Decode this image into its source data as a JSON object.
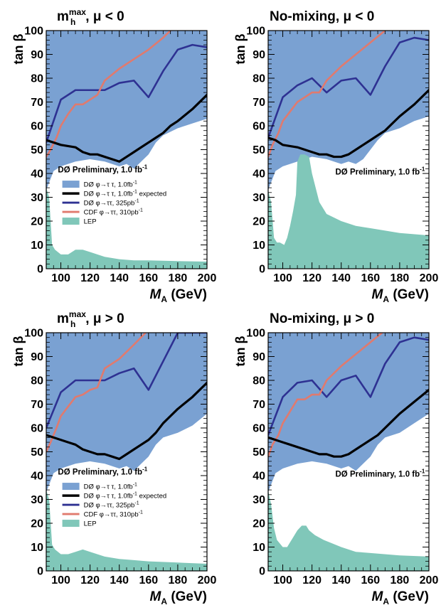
{
  "figure": {
    "ylabel": "tan β",
    "xlabel_main": "M",
    "xlabel_sub": "A",
    "xlabel_unit": " (GeV)",
    "colors": {
      "d0_observed_fill": "#7aa1d2",
      "d0_expected": "#000000",
      "d0_325pb": "#2e3192",
      "cdf": "#e07a6e",
      "lep": "#80c7b9"
    }
  },
  "chart_data": [
    {
      "type": "area",
      "title": "m_h^max, μ < 0",
      "title_main": "m",
      "title_sub": "h",
      "title_sup": "max",
      "title_rest": ", μ < 0",
      "xlim": [
        90,
        200
      ],
      "ylim": [
        0,
        100
      ],
      "xticks": [
        100,
        120,
        140,
        160,
        180,
        200
      ],
      "yticks": [
        0,
        10,
        20,
        30,
        40,
        50,
        60,
        70,
        80,
        90,
        100
      ],
      "annotation_main": "DØ Preliminary, 1.0 fb",
      "annotation_sup": "-1",
      "legend": [
        {
          "main": "DØ φ→τ τ, 1.0fb",
          "sup": "-1"
        },
        {
          "main": "DØ φ→τ τ, 1.0fb",
          "sup": "-1",
          "tail": " expected"
        },
        {
          "main": "DØ φ→ττ, 325pb",
          "sup": "-1"
        },
        {
          "main": "CDF φ→ττ, 310pb",
          "sup": "-1"
        },
        {
          "main": "LEP",
          "sup": ""
        }
      ],
      "series": [
        {
          "name": "DØ φ→τ τ, 1.0fb-1",
          "kind": "fill",
          "x": [
            90,
            95,
            100,
            110,
            120,
            130,
            140,
            145,
            150,
            155,
            160,
            165,
            170,
            180,
            190,
            200
          ],
          "y": [
            33,
            41,
            43,
            45,
            46,
            45,
            43,
            44,
            42,
            45,
            48,
            53,
            56,
            59,
            61,
            63
          ]
        },
        {
          "name": "DØ φ→τ τ, 1.0fb-1 expected",
          "kind": "line",
          "x": [
            90,
            95,
            100,
            110,
            115,
            120,
            125,
            130,
            135,
            140,
            145,
            150,
            155,
            160,
            165,
            170,
            175,
            180,
            190,
            200
          ],
          "y": [
            54,
            53,
            52,
            51,
            49,
            48,
            48,
            47,
            46,
            45,
            47,
            49,
            51,
            53,
            55,
            57,
            60,
            62,
            67,
            73
          ]
        },
        {
          "name": "DØ φ→ττ, 325pb-1",
          "kind": "line",
          "x": [
            90,
            100,
            110,
            120,
            130,
            140,
            150,
            160,
            170,
            180,
            190,
            200
          ],
          "y": [
            53,
            71,
            75,
            75,
            75,
            78,
            79,
            72,
            83,
            92,
            94,
            93
          ]
        },
        {
          "name": "CDF φ→ττ, 310pb-1",
          "kind": "line",
          "x": [
            90,
            93,
            97,
            100,
            105,
            110,
            115,
            120,
            125,
            130,
            140,
            150,
            160,
            170,
            175
          ],
          "y": [
            47,
            50,
            55,
            60,
            65,
            69,
            69,
            71,
            73,
            79,
            84,
            88,
            92,
            97,
            100
          ]
        },
        {
          "name": "LEP",
          "kind": "fill",
          "x": [
            90,
            92,
            94,
            96,
            100,
            105,
            110,
            115,
            120,
            130,
            140,
            150,
            160,
            180,
            200
          ],
          "y": [
            34,
            30,
            10,
            8,
            6,
            6,
            8,
            8,
            7,
            5,
            4,
            3.5,
            3.5,
            3.2,
            3
          ]
        }
      ]
    },
    {
      "type": "area",
      "title": "No-mixing, μ < 0",
      "title_main": "No-mixing, μ < 0",
      "xlim": [
        90,
        200
      ],
      "ylim": [
        0,
        100
      ],
      "xticks": [
        100,
        120,
        140,
        160,
        180,
        200
      ],
      "yticks": [
        0,
        10,
        20,
        30,
        40,
        50,
        60,
        70,
        80,
        90,
        100
      ],
      "annotation_main": "DØ Preliminary, 1.0 fb",
      "annotation_sup": "-1",
      "series": [
        {
          "name": "DØ φ→τ τ, 1.0fb-1",
          "kind": "fill",
          "x": [
            90,
            95,
            100,
            110,
            120,
            130,
            140,
            145,
            150,
            155,
            160,
            165,
            170,
            180,
            190,
            200
          ],
          "y": [
            33,
            41,
            43,
            45,
            47,
            46,
            44,
            45,
            44,
            46,
            50,
            54,
            57,
            59,
            62,
            64
          ]
        },
        {
          "name": "DØ φ→τ τ, 1.0fb-1 expected",
          "kind": "line",
          "x": [
            90,
            95,
            100,
            110,
            115,
            120,
            125,
            130,
            135,
            140,
            145,
            150,
            155,
            160,
            165,
            170,
            175,
            180,
            190,
            200
          ],
          "y": [
            55,
            54,
            52,
            51,
            50,
            49,
            48,
            48,
            47,
            47,
            48,
            50,
            52,
            54,
            56,
            58,
            61,
            64,
            69,
            75
          ]
        },
        {
          "name": "DØ φ→ττ, 325pb-1",
          "kind": "line",
          "x": [
            90,
            100,
            110,
            120,
            130,
            140,
            150,
            160,
            170,
            180,
            190,
            200
          ],
          "y": [
            55,
            72,
            77,
            80,
            74,
            79,
            80,
            73,
            85,
            95,
            97,
            96
          ]
        },
        {
          "name": "CDF φ→ττ, 310pb-1",
          "kind": "line",
          "x": [
            90,
            93,
            97,
            100,
            105,
            110,
            115,
            120,
            125,
            130,
            140,
            150,
            160,
            170
          ],
          "y": [
            47,
            52,
            57,
            62,
            66,
            70,
            72,
            74,
            74,
            79,
            85,
            90,
            95,
            100
          ]
        },
        {
          "name": "LEP",
          "kind": "fill",
          "x": [
            90,
            92,
            94,
            96,
            98,
            101,
            103,
            105,
            107,
            109,
            110,
            112,
            115,
            118,
            120,
            125,
            130,
            140,
            150,
            160,
            180,
            200
          ],
          "y": [
            33,
            28,
            13,
            11,
            11,
            10,
            13,
            18,
            24,
            31,
            45,
            48,
            48,
            47,
            40,
            28,
            23,
            20,
            18,
            17,
            15,
            14
          ]
        }
      ]
    },
    {
      "type": "area",
      "title": "m_h^max, μ > 0",
      "title_main": "m",
      "title_sub": "h",
      "title_sup": "max",
      "title_rest": ", μ > 0",
      "xlim": [
        90,
        200
      ],
      "ylim": [
        0,
        100
      ],
      "xticks": [
        100,
        120,
        140,
        160,
        180,
        200
      ],
      "yticks": [
        0,
        10,
        20,
        30,
        40,
        50,
        60,
        70,
        80,
        90,
        100
      ],
      "annotation_main": "DØ Preliminary, 1.0 fb",
      "annotation_sup": "-1",
      "legend": [
        {
          "main": "DØ φ→τ τ, 1.0fb",
          "sup": "-1"
        },
        {
          "main": "DØ φ→τ τ, 1.0fb",
          "sup": "-1",
          "tail": " expected"
        },
        {
          "main": "DØ φ→ττ, 325pb",
          "sup": "-1"
        },
        {
          "main": "CDF φ→ττ, 310pb",
          "sup": "-1"
        },
        {
          "main": "LEP",
          "sup": ""
        }
      ],
      "series": [
        {
          "name": "DØ φ→τ τ, 1.0fb-1",
          "kind": "fill",
          "x": [
            90,
            95,
            100,
            110,
            120,
            130,
            140,
            145,
            150,
            155,
            160,
            165,
            170,
            180,
            190,
            200
          ],
          "y": [
            33,
            41,
            43,
            45,
            46,
            45,
            43,
            44,
            42,
            45,
            48,
            53,
            56,
            58,
            61,
            66
          ]
        },
        {
          "name": "DØ φ→τ τ, 1.0fb-1 expected",
          "kind": "line",
          "x": [
            90,
            95,
            100,
            105,
            110,
            115,
            120,
            125,
            130,
            135,
            140,
            145,
            150,
            155,
            160,
            165,
            170,
            175,
            180,
            190,
            200
          ],
          "y": [
            57,
            56,
            55,
            54,
            53,
            51,
            50,
            49,
            49,
            48,
            47,
            49,
            51,
            53,
            55,
            58,
            62,
            65,
            68,
            73,
            79
          ]
        },
        {
          "name": "DØ φ→ττ, 325pb-1",
          "kind": "line",
          "x": [
            90,
            100,
            110,
            120,
            130,
            140,
            150,
            160,
            170,
            180,
            190,
            200
          ],
          "y": [
            60,
            75,
            80,
            80,
            80,
            83,
            85,
            76,
            88,
            100,
            100,
            100
          ]
        },
        {
          "name": "CDF φ→ττ, 310pb-1",
          "kind": "line",
          "x": [
            90,
            93,
            97,
            100,
            105,
            110,
            115,
            120,
            125,
            130,
            140,
            150,
            158
          ],
          "y": [
            50,
            54,
            60,
            65,
            69,
            73,
            74,
            76,
            77,
            85,
            89,
            95,
            100
          ]
        },
        {
          "name": "LEP",
          "kind": "fill",
          "x": [
            90,
            92,
            94,
            96,
            100,
            105,
            110,
            115,
            120,
            130,
            140,
            150,
            160,
            180,
            200
          ],
          "y": [
            34,
            30,
            11,
            9,
            7,
            7,
            8,
            9,
            8,
            6,
            5,
            4.5,
            4,
            3.5,
            3
          ]
        }
      ]
    },
    {
      "type": "area",
      "title": "No-mixing, μ > 0",
      "title_main": "No-mixing, μ > 0",
      "xlim": [
        90,
        200
      ],
      "ylim": [
        0,
        100
      ],
      "xticks": [
        100,
        120,
        140,
        160,
        180,
        200
      ],
      "yticks": [
        0,
        10,
        20,
        30,
        40,
        50,
        60,
        70,
        80,
        90,
        100
      ],
      "annotation_main": "DØ Preliminary, 1.0 fb",
      "annotation_sup": "-1",
      "series": [
        {
          "name": "DØ φ→τ τ, 1.0fb-1",
          "kind": "fill",
          "x": [
            90,
            95,
            100,
            110,
            120,
            130,
            140,
            145,
            150,
            155,
            160,
            165,
            170,
            180,
            190,
            200
          ],
          "y": [
            33,
            41,
            43,
            45,
            46,
            45,
            43,
            44,
            42,
            45,
            48,
            53,
            56,
            58,
            62,
            66
          ]
        },
        {
          "name": "DØ φ→τ τ, 1.0fb-1 expected",
          "kind": "line",
          "x": [
            90,
            95,
            100,
            105,
            110,
            115,
            120,
            125,
            130,
            135,
            140,
            145,
            150,
            155,
            160,
            165,
            170,
            175,
            180,
            190,
            200
          ],
          "y": [
            56,
            55,
            54,
            53,
            52,
            51,
            50,
            49,
            49,
            48,
            48,
            49,
            51,
            53,
            55,
            57,
            60,
            63,
            66,
            71,
            76
          ]
        },
        {
          "name": "DØ φ→ττ, 325pb-1",
          "kind": "line",
          "x": [
            90,
            100,
            110,
            120,
            130,
            140,
            150,
            160,
            170,
            180,
            190,
            200
          ],
          "y": [
            57,
            73,
            79,
            80,
            73,
            80,
            82,
            73,
            87,
            96,
            98,
            97
          ]
        },
        {
          "name": "CDF φ→ττ, 310pb-1",
          "kind": "line",
          "x": [
            90,
            93,
            97,
            100,
            105,
            110,
            115,
            120,
            125,
            130,
            140,
            150,
            160,
            168
          ],
          "y": [
            48,
            53,
            57,
            62,
            67,
            72,
            72,
            74,
            74,
            80,
            86,
            91,
            96,
            100
          ]
        },
        {
          "name": "LEP",
          "kind": "fill",
          "x": [
            90,
            92,
            94,
            96,
            100,
            103,
            106,
            110,
            113,
            116,
            118,
            122,
            128,
            140,
            150,
            160,
            180,
            200
          ],
          "y": [
            34,
            28,
            18,
            13,
            10,
            10,
            13,
            17,
            19,
            19,
            17,
            15,
            13,
            10,
            8,
            7.5,
            6.5,
            6
          ]
        }
      ]
    }
  ]
}
